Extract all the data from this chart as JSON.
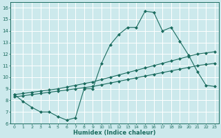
{
  "xlabel": "Humidex (Indice chaleur)",
  "bg_color": "#cce9ec",
  "line_color": "#1a6b5e",
  "grid_color": "#ffffff",
  "xlim": [
    -0.5,
    23.5
  ],
  "ylim": [
    6.0,
    16.5
  ],
  "yticks": [
    6,
    7,
    8,
    9,
    10,
    11,
    12,
    13,
    14,
    15,
    16
  ],
  "xticks": [
    0,
    1,
    2,
    3,
    4,
    5,
    6,
    7,
    8,
    9,
    10,
    11,
    12,
    13,
    14,
    15,
    16,
    17,
    18,
    19,
    20,
    21,
    22,
    23
  ],
  "series1_x": [
    0,
    1,
    2,
    3,
    4,
    5,
    6,
    7,
    8,
    9,
    10,
    11,
    12,
    13,
    14,
    15,
    16,
    17,
    18,
    19,
    20,
    21,
    22,
    23
  ],
  "series1_y": [
    8.5,
    7.9,
    7.4,
    7.0,
    7.0,
    6.6,
    6.3,
    6.5,
    9.0,
    9.0,
    11.2,
    12.8,
    13.7,
    14.3,
    14.3,
    15.7,
    15.6,
    14.0,
    14.3,
    13.1,
    11.9,
    10.5,
    9.3,
    9.2
  ],
  "series2_x": [
    0,
    1,
    2,
    3,
    4,
    5,
    6,
    7,
    8,
    9,
    10,
    11,
    12,
    13,
    14,
    15,
    16,
    17,
    18,
    19,
    20,
    21,
    22,
    23
  ],
  "series2_y": [
    8.3,
    8.4,
    8.5,
    8.6,
    8.7,
    8.8,
    8.9,
    9.0,
    9.1,
    9.2,
    9.35,
    9.5,
    9.65,
    9.8,
    9.95,
    10.1,
    10.25,
    10.4,
    10.55,
    10.7,
    10.85,
    11.0,
    11.1,
    11.2
  ],
  "series3_x": [
    0,
    1,
    2,
    3,
    4,
    5,
    6,
    7,
    8,
    9,
    10,
    11,
    12,
    13,
    14,
    15,
    16,
    17,
    18,
    19,
    20,
    21,
    22,
    23
  ],
  "series3_y": [
    8.5,
    8.6,
    8.7,
    8.8,
    8.9,
    9.0,
    9.15,
    9.3,
    9.45,
    9.6,
    9.8,
    10.0,
    10.2,
    10.4,
    10.6,
    10.8,
    11.0,
    11.2,
    11.4,
    11.6,
    11.8,
    12.0,
    12.1,
    12.2
  ]
}
